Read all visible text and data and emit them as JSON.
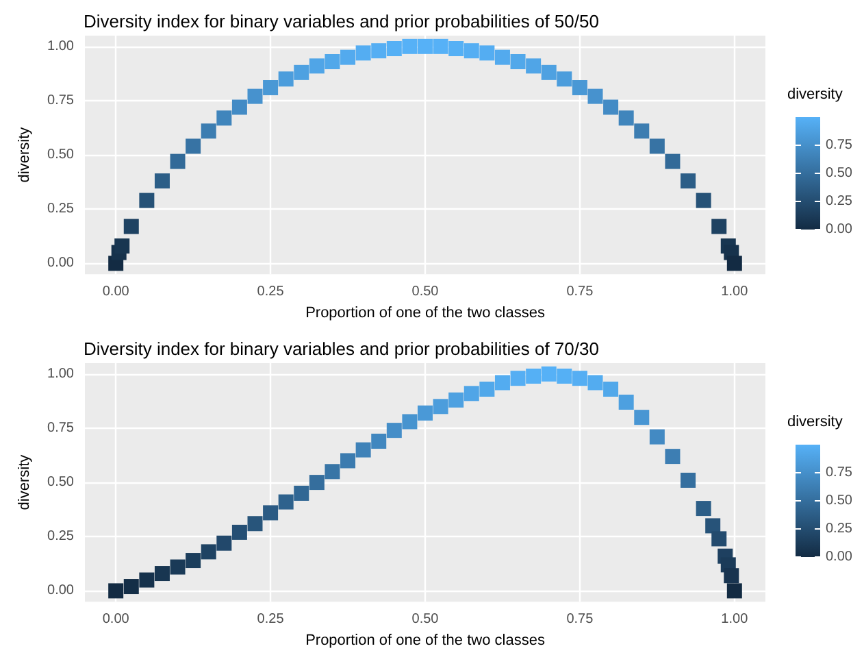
{
  "chart_data": [
    {
      "type": "scatter",
      "title": "Diversity index for binary variables and prior probabilities of 50/50",
      "xlabel": "Proportion of one of the two classes",
      "ylabel": "diversity",
      "clabel": "diversity",
      "marker": "square",
      "grid": true,
      "x": [
        0,
        0.005,
        0.01,
        0.025,
        0.05,
        0.075,
        0.1,
        0.125,
        0.15,
        0.175,
        0.2,
        0.225,
        0.25,
        0.275,
        0.3,
        0.325,
        0.35,
        0.375,
        0.4,
        0.425,
        0.45,
        0.475,
        0.5,
        0.525,
        0.55,
        0.575,
        0.6,
        0.625,
        0.65,
        0.675,
        0.7,
        0.725,
        0.75,
        0.775,
        0.8,
        0.825,
        0.85,
        0.875,
        0.9,
        0.925,
        0.95,
        0.975,
        0.99,
        0.995,
        1
      ],
      "values": [
        0,
        0.05,
        0.08,
        0.17,
        0.29,
        0.38,
        0.47,
        0.54,
        0.61,
        0.67,
        0.72,
        0.77,
        0.81,
        0.85,
        0.88,
        0.91,
        0.93,
        0.95,
        0.97,
        0.98,
        0.99,
        1,
        1,
        1,
        0.99,
        0.98,
        0.97,
        0.95,
        0.93,
        0.91,
        0.88,
        0.85,
        0.81,
        0.77,
        0.72,
        0.67,
        0.61,
        0.54,
        0.47,
        0.38,
        0.29,
        0.17,
        0.08,
        0.05,
        0
      ],
      "cvalues": [
        0,
        0.05,
        0.08,
        0.17,
        0.29,
        0.38,
        0.47,
        0.54,
        0.61,
        0.67,
        0.72,
        0.77,
        0.81,
        0.85,
        0.88,
        0.91,
        0.93,
        0.95,
        0.97,
        0.98,
        0.99,
        1,
        1,
        1,
        0.99,
        0.98,
        0.97,
        0.95,
        0.93,
        0.91,
        0.88,
        0.85,
        0.81,
        0.77,
        0.72,
        0.67,
        0.61,
        0.54,
        0.47,
        0.38,
        0.29,
        0.17,
        0.08,
        0.05,
        0
      ],
      "xlim": [
        -0.05,
        1.05
      ],
      "ylim": [
        -0.05,
        1.05
      ],
      "xticks": [
        {
          "value": 0,
          "label": "0.00"
        },
        {
          "value": 0.25,
          "label": "0.25"
        },
        {
          "value": 0.5,
          "label": "0.50"
        },
        {
          "value": 0.75,
          "label": "0.75"
        },
        {
          "value": 1,
          "label": "1.00"
        }
      ],
      "yticks": [
        {
          "value": 0,
          "label": "0.00"
        },
        {
          "value": 0.25,
          "label": "0.25"
        },
        {
          "value": 0.5,
          "label": "0.50"
        },
        {
          "value": 0.75,
          "label": "0.75"
        },
        {
          "value": 1,
          "label": "1.00"
        }
      ],
      "clim": [
        0,
        1
      ],
      "cticks": [
        {
          "value": 0,
          "label": "0.00"
        },
        {
          "value": 0.25,
          "label": "0.25"
        },
        {
          "value": 0.5,
          "label": "0.50"
        },
        {
          "value": 0.75,
          "label": "0.75"
        }
      ]
    },
    {
      "type": "scatter",
      "title": "Diversity index for binary variables and prior probabilities of 70/30",
      "xlabel": "Proportion of one of the two classes",
      "ylabel": "diversity",
      "clabel": "diversity",
      "marker": "square",
      "grid": true,
      "x": [
        0,
        0.025,
        0.05,
        0.075,
        0.1,
        0.125,
        0.15,
        0.175,
        0.2,
        0.225,
        0.25,
        0.275,
        0.3,
        0.325,
        0.35,
        0.375,
        0.4,
        0.425,
        0.45,
        0.475,
        0.5,
        0.525,
        0.55,
        0.575,
        0.6,
        0.625,
        0.65,
        0.675,
        0.7,
        0.725,
        0.75,
        0.775,
        0.8,
        0.825,
        0.85,
        0.875,
        0.9,
        0.925,
        0.95,
        0.965,
        0.975,
        0.985,
        0.99,
        0.995,
        1
      ],
      "values": [
        0,
        0.02,
        0.05,
        0.08,
        0.11,
        0.14,
        0.18,
        0.22,
        0.27,
        0.31,
        0.36,
        0.41,
        0.45,
        0.5,
        0.55,
        0.6,
        0.65,
        0.69,
        0.74,
        0.78,
        0.82,
        0.85,
        0.88,
        0.91,
        0.93,
        0.96,
        0.98,
        0.99,
        1,
        0.99,
        0.98,
        0.96,
        0.93,
        0.87,
        0.8,
        0.71,
        0.62,
        0.51,
        0.38,
        0.3,
        0.24,
        0.16,
        0.12,
        0.07,
        0
      ],
      "cvalues": [
        0,
        0.02,
        0.05,
        0.08,
        0.11,
        0.14,
        0.18,
        0.22,
        0.27,
        0.31,
        0.36,
        0.41,
        0.45,
        0.5,
        0.55,
        0.6,
        0.65,
        0.69,
        0.74,
        0.78,
        0.82,
        0.85,
        0.88,
        0.91,
        0.93,
        0.96,
        0.98,
        0.99,
        1,
        0.99,
        0.98,
        0.96,
        0.93,
        0.87,
        0.8,
        0.71,
        0.62,
        0.51,
        0.38,
        0.3,
        0.24,
        0.16,
        0.12,
        0.07,
        0
      ],
      "xlim": [
        -0.05,
        1.05
      ],
      "ylim": [
        -0.05,
        1.05
      ],
      "xticks": [
        {
          "value": 0,
          "label": "0.00"
        },
        {
          "value": 0.25,
          "label": "0.25"
        },
        {
          "value": 0.5,
          "label": "0.50"
        },
        {
          "value": 0.75,
          "label": "0.75"
        },
        {
          "value": 1,
          "label": "1.00"
        }
      ],
      "yticks": [
        {
          "value": 0,
          "label": "0.00"
        },
        {
          "value": 0.25,
          "label": "0.25"
        },
        {
          "value": 0.5,
          "label": "0.50"
        },
        {
          "value": 0.75,
          "label": "0.75"
        },
        {
          "value": 1,
          "label": "1.00"
        }
      ],
      "clim": [
        0,
        1
      ],
      "cticks": [
        {
          "value": 0,
          "label": "0.00"
        },
        {
          "value": 0.25,
          "label": "0.25"
        },
        {
          "value": 0.5,
          "label": "0.50"
        },
        {
          "value": 0.75,
          "label": "0.75"
        }
      ]
    }
  ]
}
